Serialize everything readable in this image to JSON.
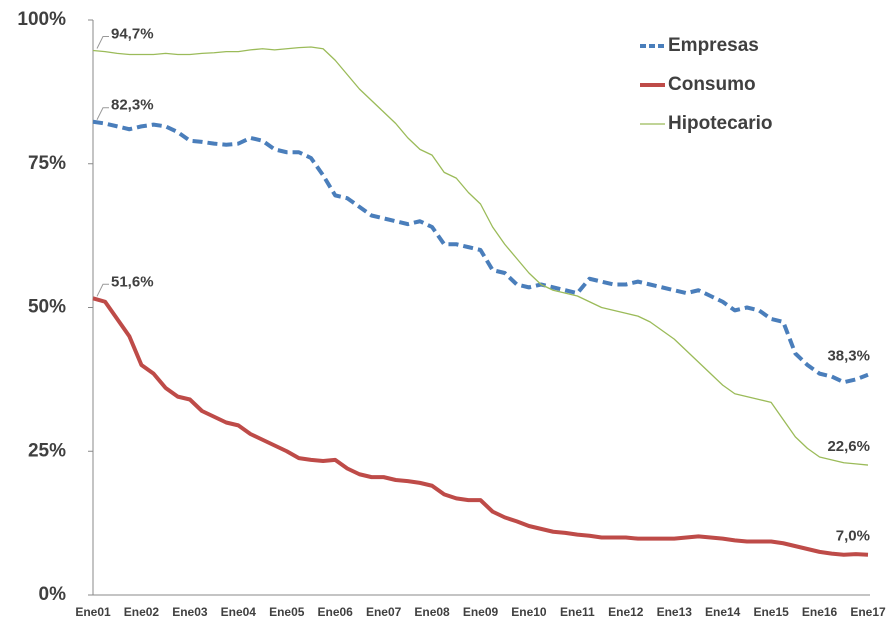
{
  "chart_data": {
    "type": "line",
    "categories": [
      "Ene01",
      null,
      null,
      null,
      "Ene02",
      null,
      null,
      null,
      "Ene03",
      null,
      null,
      null,
      "Ene04",
      null,
      null,
      null,
      "Ene05",
      null,
      null,
      null,
      "Ene06",
      null,
      null,
      null,
      "Ene07",
      null,
      null,
      null,
      "Ene08",
      null,
      null,
      null,
      "Ene09",
      null,
      null,
      null,
      "Ene10",
      null,
      null,
      null,
      "Ene11",
      null,
      null,
      null,
      "Ene12",
      null,
      null,
      null,
      "Ene13",
      null,
      null,
      null,
      "Ene14",
      null,
      null,
      null,
      "Ene15",
      null,
      null,
      null,
      "Ene16",
      null,
      null,
      null,
      "Ene17"
    ],
    "series": [
      {
        "name": "Empresas",
        "color": "#4a7ebb",
        "dash": true,
        "width": 4,
        "values": [
          82.3,
          82.0,
          81.5,
          81.0,
          81.5,
          81.8,
          81.5,
          80.5,
          79.0,
          78.8,
          78.5,
          78.3,
          78.5,
          79.5,
          79.0,
          77.5,
          77.0,
          77.0,
          76.0,
          73.0,
          69.5,
          69.0,
          67.5,
          66.0,
          65.5,
          65.0,
          64.5,
          65.0,
          64.0,
          61.0,
          61.0,
          60.5,
          60.0,
          56.5,
          56.0,
          54.0,
          53.5,
          54.0,
          53.5,
          53.0,
          52.5,
          55.0,
          54.5,
          54.0,
          54.0,
          54.5,
          54.0,
          53.5,
          53.0,
          52.5,
          53.0,
          52.0,
          51.0,
          49.5,
          50.0,
          49.5,
          48.0,
          47.5,
          42.0,
          40.0,
          38.5,
          38.0,
          37.0,
          37.5,
          38.3
        ],
        "value_labels": [
          "82,3%",
          null,
          null,
          null,
          null,
          null,
          null,
          null,
          null,
          null,
          null,
          null,
          null,
          null,
          null,
          null,
          null,
          null,
          null,
          null,
          null,
          null,
          null,
          null,
          null,
          null,
          null,
          null,
          null,
          null,
          null,
          null,
          null,
          null,
          null,
          null,
          null,
          null,
          null,
          null,
          null,
          null,
          null,
          null,
          null,
          null,
          null,
          null,
          null,
          null,
          null,
          null,
          null,
          null,
          null,
          null,
          null,
          null,
          null,
          null,
          null,
          null,
          null,
          null,
          "38,3%"
        ]
      },
      {
        "name": "Consumo",
        "color": "#be4b48",
        "dash": false,
        "width": 4,
        "values": [
          51.6,
          51.0,
          48.0,
          45.0,
          40.0,
          38.5,
          36.0,
          34.5,
          34.0,
          32.0,
          31.0,
          30.0,
          29.5,
          28.0,
          27.0,
          26.0,
          25.0,
          23.8,
          23.5,
          23.3,
          23.5,
          22.0,
          21.0,
          20.5,
          20.5,
          20.0,
          19.8,
          19.5,
          19.0,
          17.5,
          16.8,
          16.5,
          16.5,
          14.5,
          13.5,
          12.8,
          12.0,
          11.5,
          11.0,
          10.8,
          10.5,
          10.3,
          10.0,
          10.0,
          10.0,
          9.8,
          9.8,
          9.8,
          9.8,
          10.0,
          10.2,
          10.0,
          9.8,
          9.5,
          9.3,
          9.3,
          9.3,
          9.0,
          8.5,
          8.0,
          7.5,
          7.2,
          7.0,
          7.1,
          7.0
        ],
        "value_labels": [
          "51,6%",
          null,
          null,
          null,
          null,
          null,
          null,
          null,
          null,
          null,
          null,
          null,
          null,
          null,
          null,
          null,
          null,
          null,
          null,
          null,
          null,
          null,
          null,
          null,
          null,
          null,
          null,
          null,
          null,
          null,
          null,
          null,
          null,
          null,
          null,
          null,
          null,
          null,
          null,
          null,
          null,
          null,
          null,
          null,
          null,
          null,
          null,
          null,
          null,
          null,
          null,
          null,
          null,
          null,
          null,
          null,
          null,
          null,
          null,
          null,
          null,
          null,
          null,
          null,
          "7,0%"
        ]
      },
      {
        "name": "Hipotecario",
        "color": "#9bbb59",
        "dash": false,
        "width": 1.3,
        "values": [
          94.7,
          94.5,
          94.2,
          94.0,
          94.0,
          94.0,
          94.2,
          94.0,
          94.0,
          94.2,
          94.3,
          94.5,
          94.5,
          94.8,
          95.0,
          94.8,
          95.0,
          95.2,
          95.3,
          95.0,
          93.0,
          90.5,
          88.0,
          86.0,
          84.0,
          82.0,
          79.5,
          77.5,
          76.5,
          73.5,
          72.5,
          70.0,
          68.0,
          64.0,
          61.0,
          58.5,
          56.0,
          54.0,
          53.0,
          52.5,
          52.0,
          51.0,
          50.0,
          49.5,
          49.0,
          48.5,
          47.5,
          46.0,
          44.5,
          42.5,
          40.5,
          38.5,
          36.5,
          35.0,
          34.5,
          34.0,
          33.5,
          30.5,
          27.5,
          25.5,
          24.0,
          23.5,
          23.0,
          22.8,
          22.6
        ],
        "value_labels": [
          "94,7%",
          null,
          null,
          null,
          null,
          null,
          null,
          null,
          null,
          null,
          null,
          null,
          null,
          null,
          null,
          null,
          null,
          null,
          null,
          null,
          null,
          null,
          null,
          null,
          null,
          null,
          null,
          null,
          null,
          null,
          null,
          null,
          null,
          null,
          null,
          null,
          null,
          null,
          null,
          null,
          null,
          null,
          null,
          null,
          null,
          null,
          null,
          null,
          null,
          null,
          null,
          null,
          null,
          null,
          null,
          null,
          null,
          null,
          null,
          null,
          null,
          null,
          null,
          null,
          "22,6%"
        ]
      }
    ],
    "ylim": [
      0,
      100
    ],
    "yticks": [
      {
        "value": 0,
        "label": "0%"
      },
      {
        "value": 25,
        "label": "25%"
      },
      {
        "value": 50,
        "label": "50%"
      },
      {
        "value": 75,
        "label": "75%"
      },
      {
        "value": 100,
        "label": "100%"
      }
    ],
    "grid": false,
    "legend": "top-right"
  }
}
